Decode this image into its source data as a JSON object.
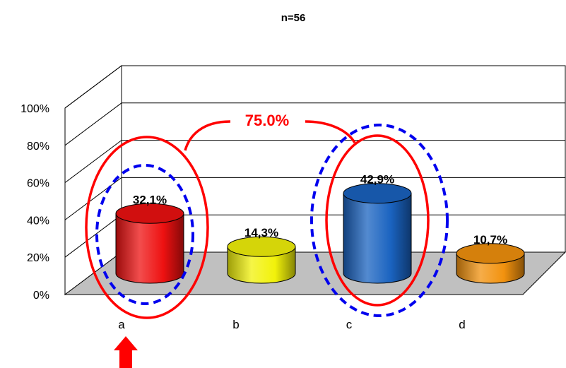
{
  "chart_data": {
    "type": "bar",
    "style": "3d-cylinder",
    "title": "n=56",
    "categories": [
      "a",
      "b",
      "c",
      "d"
    ],
    "values": [
      32.1,
      14.3,
      42.9,
      10.7
    ],
    "data_labels": [
      "32,1%",
      "14,3%",
      "42,9%",
      "10,7%"
    ],
    "bar_colors": [
      "#ee1111",
      "#f2f20a",
      "#1a63c0",
      "#f2920e"
    ],
    "y_ticks": [
      "0%",
      "20%",
      "40%",
      "60%",
      "80%",
      "100%"
    ],
    "ylim": [
      0,
      100
    ],
    "grid": true,
    "legend": "none"
  },
  "annotation": {
    "text": "75.0%",
    "color": "#ff0000",
    "highlight_outline_color": "#ff0000",
    "dashed_outline_color": "#0000ee",
    "highlighted_categories": [
      "a",
      "c"
    ],
    "arrow_color": "#ff0000",
    "arrow_points_to": "a"
  }
}
